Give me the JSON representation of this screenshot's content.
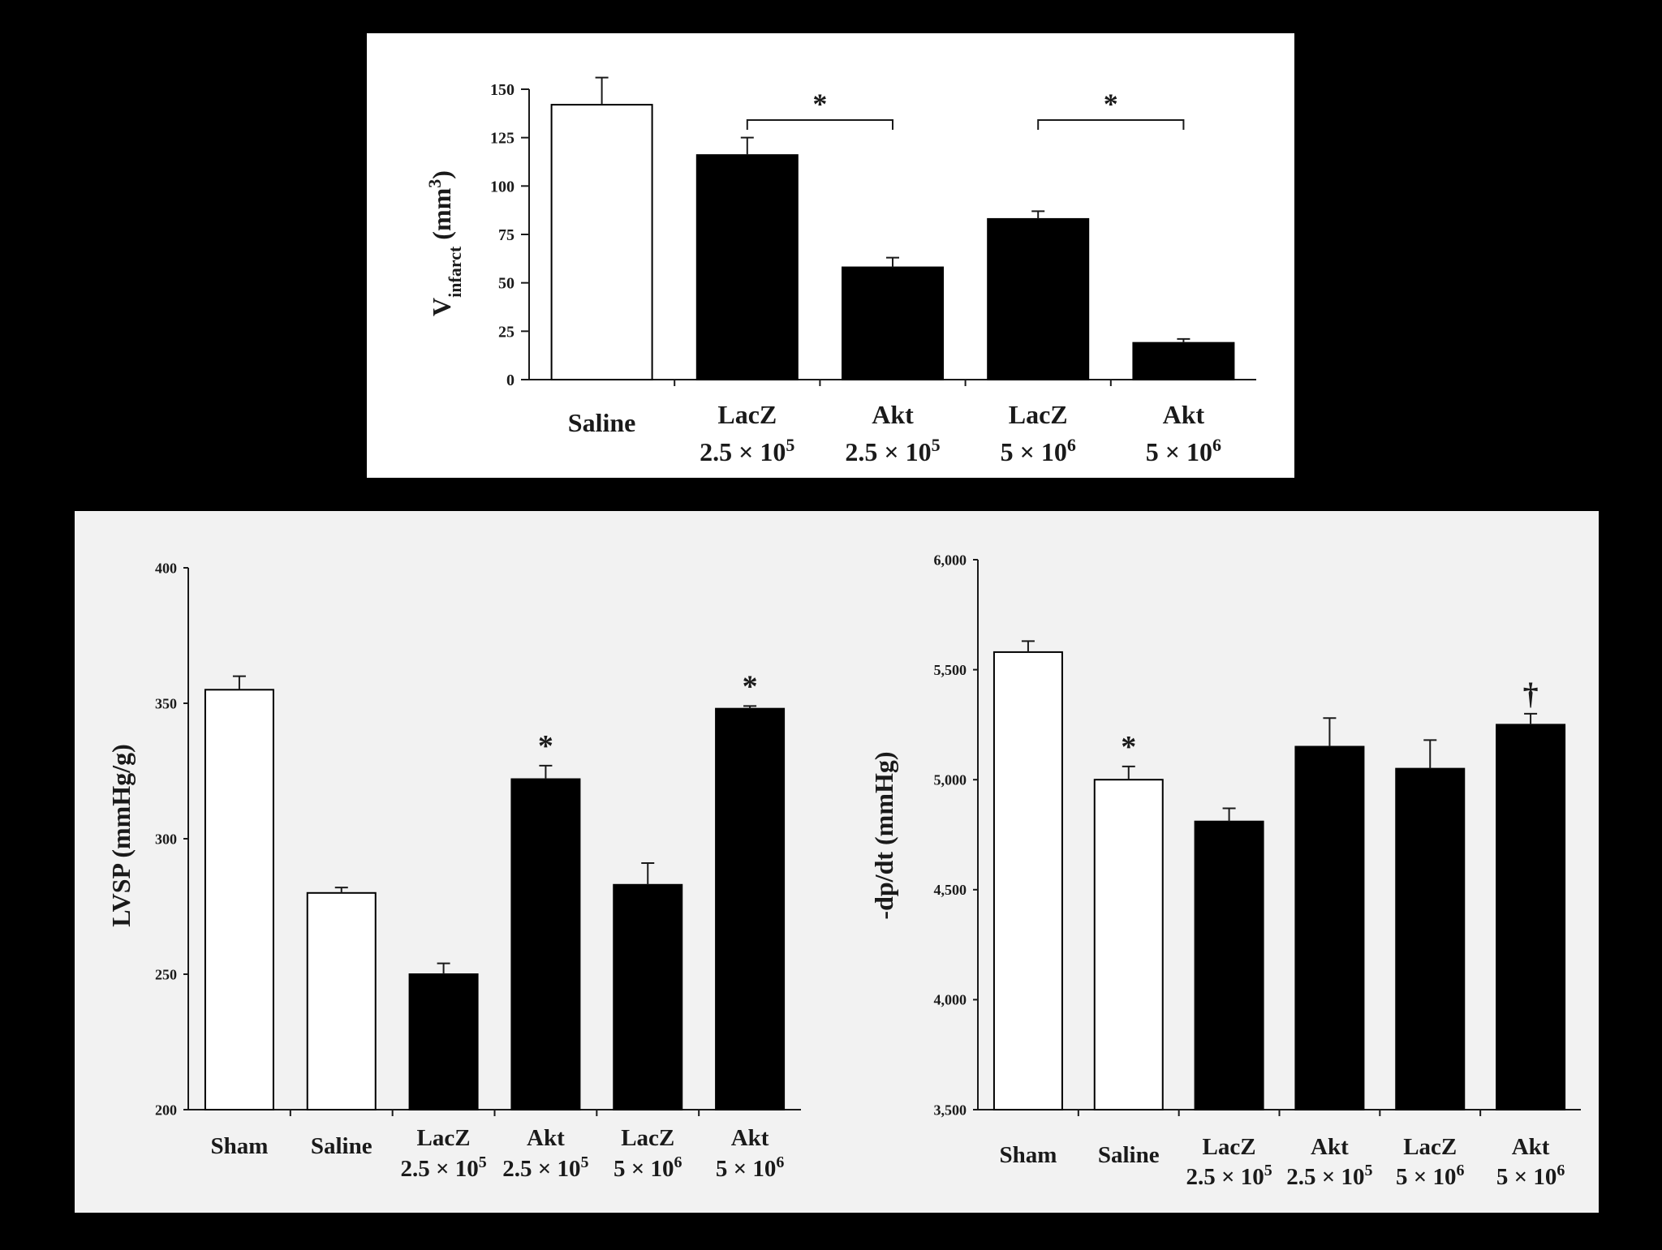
{
  "colors": {
    "page_background": "#000000",
    "top_panel_background": "#ffffff",
    "bottom_panel_background": "#f2f2f2",
    "bar_open": "#ffffff",
    "bar_filled": "#000000",
    "ink": "#1a1a1a"
  },
  "chart_data": [
    {
      "id": "infarct",
      "type": "bar",
      "ylabel_main": "V",
      "ylabel_sub": "infarct",
      "ylabel_unit": "(mm",
      "ylabel_unit_sup": "3",
      "ylabel_close": ")",
      "ylim": [
        0,
        150
      ],
      "y_ticks": [
        "0",
        "25",
        "50",
        "75",
        "100",
        "125",
        "150"
      ],
      "categories": [
        {
          "line1": "Saline",
          "line2": "",
          "sup": ""
        },
        {
          "line1": "LacZ",
          "line2": "2.5 × 10",
          "sup": "5"
        },
        {
          "line1": "Akt",
          "line2": "2.5 × 10",
          "sup": "5"
        },
        {
          "line1": "LacZ",
          "line2": "5 × 10",
          "sup": "6"
        },
        {
          "line1": "Akt",
          "line2": "5 × 10",
          "sup": "6"
        }
      ],
      "values": [
        142,
        116,
        58,
        83,
        19
      ],
      "errors": [
        14,
        9,
        5,
        4,
        2
      ],
      "fill": [
        "open",
        "filled",
        "filled",
        "filled",
        "filled"
      ],
      "significance": [
        {
          "from": 1,
          "to": 2,
          "label": "*"
        },
        {
          "from": 3,
          "to": 4,
          "label": "*"
        }
      ],
      "markers": []
    },
    {
      "id": "lvsp",
      "type": "bar",
      "ylabel": "LVSP (mmHg/g)",
      "ylim": [
        200,
        400
      ],
      "y_ticks": [
        "200",
        "250",
        "300",
        "350",
        "400"
      ],
      "categories": [
        {
          "line1": "Sham",
          "line2": "",
          "sup": ""
        },
        {
          "line1": "Saline",
          "line2": "",
          "sup": ""
        },
        {
          "line1": "LacZ",
          "line2": "2.5 × 10",
          "sup": "5"
        },
        {
          "line1": "Akt",
          "line2": "2.5 × 10",
          "sup": "5"
        },
        {
          "line1": "LacZ",
          "line2": "5 × 10",
          "sup": "6"
        },
        {
          "line1": "Akt",
          "line2": "5 × 10",
          "sup": "6"
        }
      ],
      "values": [
        355,
        280,
        250,
        322,
        283,
        348
      ],
      "errors": [
        5,
        2,
        4,
        5,
        8,
        1
      ],
      "fill": [
        "open",
        "open",
        "filled",
        "filled",
        "filled",
        "filled"
      ],
      "markers": [
        "",
        "",
        "",
        "*",
        "",
        "*"
      ]
    },
    {
      "id": "dpdt",
      "type": "bar",
      "ylabel": "-dp/dt (mmHg)",
      "ylim": [
        3500,
        6000
      ],
      "y_ticks": [
        "3,500",
        "4,000",
        "4,500",
        "5,000",
        "5,500",
        "6,000"
      ],
      "categories": [
        {
          "line1": "Sham",
          "line2": "",
          "sup": ""
        },
        {
          "line1": "Saline",
          "line2": "",
          "sup": ""
        },
        {
          "line1": "LacZ",
          "line2": "2.5 × 10",
          "sup": "5"
        },
        {
          "line1": "Akt",
          "line2": "2.5 × 10",
          "sup": "5"
        },
        {
          "line1": "LacZ",
          "line2": "5 × 10",
          "sup": "6"
        },
        {
          "line1": "Akt",
          "line2": "5 × 10",
          "sup": "6"
        }
      ],
      "values": [
        5580,
        5000,
        4810,
        5150,
        5050,
        5250
      ],
      "errors": [
        50,
        60,
        60,
        130,
        130,
        50
      ],
      "fill": [
        "open",
        "open",
        "filled",
        "filled",
        "filled",
        "filled"
      ],
      "markers": [
        "",
        "*",
        "",
        "",
        "",
        "†"
      ]
    }
  ]
}
